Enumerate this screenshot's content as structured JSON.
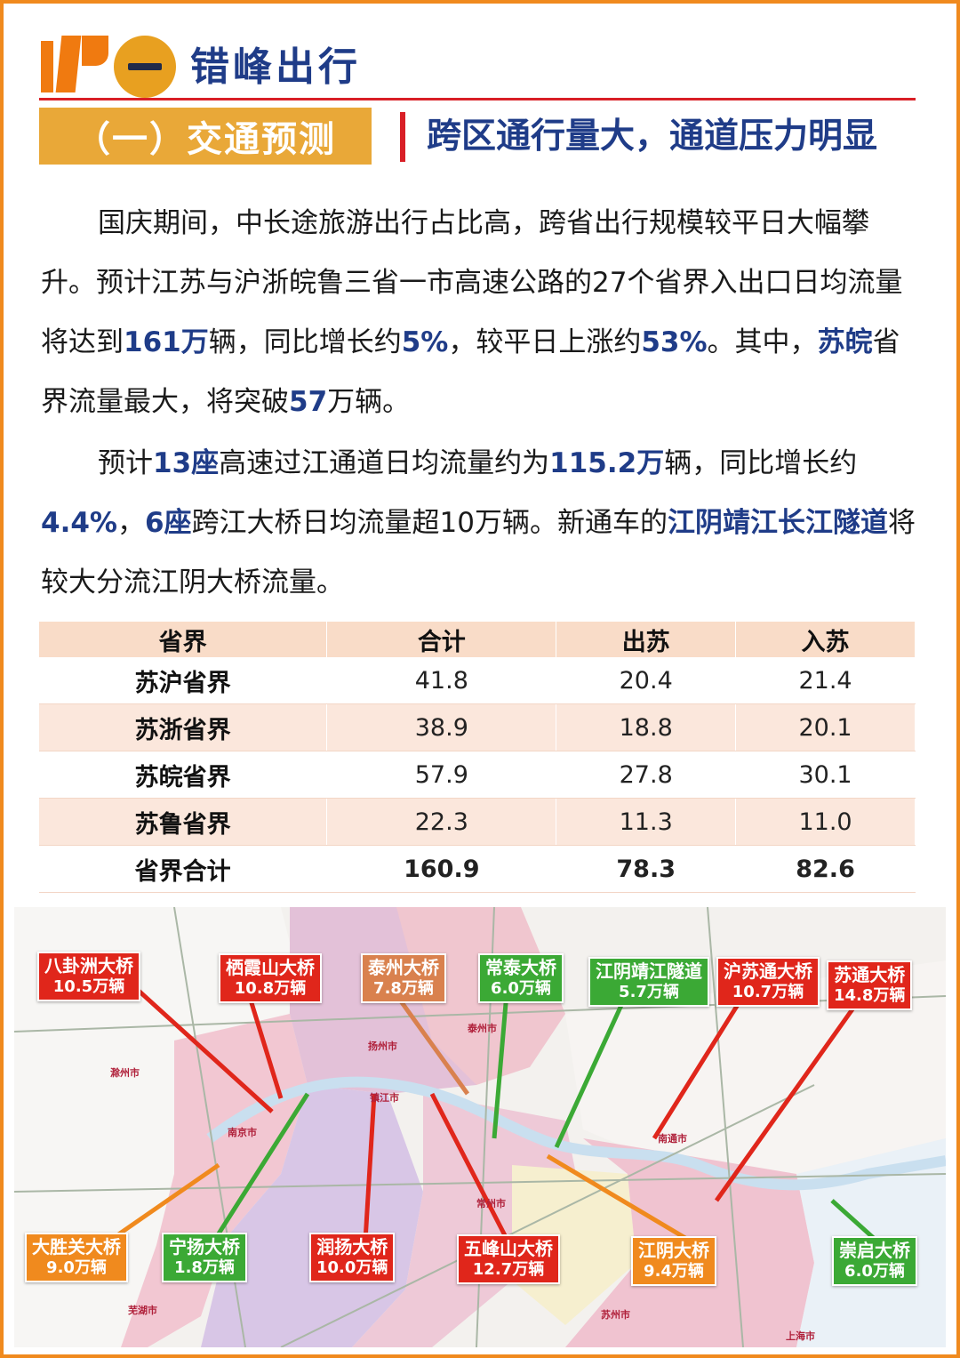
{
  "header": {
    "section_title": "错峰出行",
    "subtitle": "（一）交通预测",
    "headline": "跨区通行量大，通道压力明显"
  },
  "paragraph1": {
    "p1": "国庆期间，中长途旅游出行占比高，跨省出行规模较平日大幅攀升。预计江苏与沪浙皖鲁三省一市高速公路的27个省界入出口日均流量将达到",
    "h1": "161万",
    "p2": "辆，同比增长约",
    "h2": "5%",
    "p3": "，较平日上涨约",
    "h3": "53%",
    "p4": "。其中，",
    "h4": "苏皖",
    "p5": "省界流量最大，将突破",
    "h5": "57",
    "p6": "万辆。"
  },
  "paragraph2": {
    "p1": "预计",
    "h1": "13座",
    "p2": "高速过江通道日均流量约为",
    "h2": "115.2万",
    "p3": "辆，同比增长约",
    "h3": "4.4%",
    "p4": "，",
    "h4": "6座",
    "p5": "跨江大桥日均流量超10万辆。新通车的",
    "h5": "江阴靖江长江隧道",
    "p6": "将较大分流江阴大桥流量。"
  },
  "table": {
    "headers": [
      "省界",
      "合计",
      "出苏",
      "入苏"
    ],
    "rows": [
      [
        "苏沪省界",
        "41.8",
        "20.4",
        "21.4"
      ],
      [
        "苏浙省界",
        "38.9",
        "18.8",
        "20.1"
      ],
      [
        "苏皖省界",
        "57.9",
        "27.8",
        "30.1"
      ],
      [
        "苏鲁省界",
        "22.3",
        "11.3",
        "11.0"
      ],
      [
        "省界合计",
        "160.9",
        "78.3",
        "82.6"
      ]
    ]
  },
  "map": {
    "labels": [
      {
        "name": "八卦洲大桥",
        "value": "10.5万辆",
        "color": "#e0261b"
      },
      {
        "name": "栖霞山大桥",
        "value": "10.8万辆",
        "color": "#e0261b"
      },
      {
        "name": "泰州大桥",
        "value": "7.8万辆",
        "color": "#d9814e"
      },
      {
        "name": "常泰大桥",
        "value": "6.0万辆",
        "color": "#3ba935"
      },
      {
        "name": "江阴靖江隧道",
        "value": "5.7万辆",
        "color": "#3ba935"
      },
      {
        "name": "沪苏通大桥",
        "value": "10.7万辆",
        "color": "#e0261b"
      },
      {
        "name": "苏通大桥",
        "value": "14.8万辆",
        "color": "#e0261b"
      },
      {
        "name": "大胜关大桥",
        "value": "9.0万辆",
        "color": "#f08a1e"
      },
      {
        "name": "宁扬大桥",
        "value": "1.8万辆",
        "color": "#3ba935"
      },
      {
        "name": "润扬大桥",
        "value": "10.0万辆",
        "color": "#e0261b"
      },
      {
        "name": "五峰山大桥",
        "value": "12.7万辆",
        "color": "#e0261b"
      },
      {
        "name": "江阴大桥",
        "value": "9.4万辆",
        "color": "#f08a1e"
      },
      {
        "name": "崇启大桥",
        "value": "6.0万辆",
        "color": "#3ba935"
      }
    ],
    "cities": [
      "滁州市",
      "南京市",
      "扬州市",
      "镇江市",
      "泰州市",
      "南通市",
      "常州市",
      "芜湖市",
      "苏州市",
      "上海市"
    ]
  }
}
